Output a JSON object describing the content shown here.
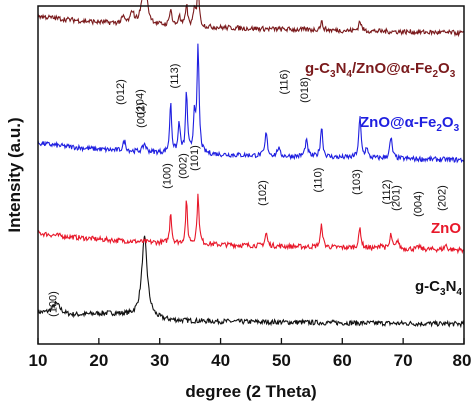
{
  "chart_data": {
    "type": "line",
    "xlabel": "degree (2 Theta)",
    "ylabel": "Intensity (a.u.)",
    "xlim": [
      10,
      80
    ],
    "xticks": [
      10,
      20,
      30,
      40,
      50,
      60,
      70,
      80
    ],
    "series": [
      {
        "key": "gcn",
        "label_html": "g-C<tspan class=\"sub\" dy=\"4\">3</tspan><tspan dy=\"-4\">N</tspan><tspan class=\"sub\" dy=\"4\">4</tspan>",
        "color": "#111111",
        "baseline": 0.0,
        "peaks": [
          [
            13.0,
            0.11,
            0.8
          ],
          [
            27.5,
            0.8,
            0.55
          ]
        ],
        "annotations": [
          {
            "x": 13.0,
            "y": 0.16,
            "text": "(100)"
          }
        ]
      },
      {
        "key": "zno",
        "label_html": "ZnO",
        "color": "#e8182a",
        "baseline": 0.78,
        "peaks": [
          [
            31.8,
            0.32,
            0.18
          ],
          [
            34.4,
            0.42,
            0.18
          ],
          [
            36.3,
            0.48,
            0.2
          ],
          [
            47.5,
            0.13,
            0.22
          ],
          [
            56.6,
            0.22,
            0.22
          ],
          [
            62.9,
            0.2,
            0.22
          ],
          [
            66.4,
            0.05,
            0.2
          ],
          [
            68.0,
            0.14,
            0.2
          ],
          [
            69.1,
            0.09,
            0.2
          ],
          [
            72.6,
            0.03,
            0.2
          ],
          [
            77.0,
            0.05,
            0.2
          ]
        ],
        "annotations": [
          {
            "x": 27.5,
            "y": 2.05,
            "text": "(002)"
          },
          {
            "x": 31.8,
            "y": 1.44,
            "text": "(100)"
          },
          {
            "x": 34.4,
            "y": 1.54,
            "text": "(002)"
          },
          {
            "x": 36.3,
            "y": 1.62,
            "text": "(101)"
          },
          {
            "x": 47.5,
            "y": 1.27,
            "text": "(102)"
          },
          {
            "x": 56.6,
            "y": 1.4,
            "text": "(110)"
          },
          {
            "x": 62.9,
            "y": 1.38,
            "text": "(103)"
          },
          {
            "x": 67.8,
            "y": 1.28,
            "text": "(112)"
          },
          {
            "x": 69.4,
            "y": 1.22,
            "text": "(201)"
          },
          {
            "x": 73.0,
            "y": 1.16,
            "text": "(004)"
          },
          {
            "x": 77.0,
            "y": 1.22,
            "text": "(202)"
          }
        ]
      },
      {
        "key": "znofe",
        "label_html": "ZnO@α-Fe<tspan class=\"sub\" dy=\"4\">2</tspan><tspan dy=\"-4\">O</tspan><tspan class=\"sub\" dy=\"4\">3</tspan>",
        "color": "#1f1fe0",
        "baseline": 1.68,
        "peaks": [
          [
            24.2,
            0.1,
            0.25
          ],
          [
            27.5,
            0.08,
            0.3
          ],
          [
            31.8,
            0.52,
            0.18
          ],
          [
            33.2,
            0.3,
            0.2
          ],
          [
            34.4,
            0.62,
            0.18
          ],
          [
            35.7,
            0.4,
            0.18
          ],
          [
            36.3,
            1.05,
            0.2
          ],
          [
            47.5,
            0.23,
            0.22
          ],
          [
            49.5,
            0.08,
            0.25
          ],
          [
            54.1,
            0.16,
            0.25
          ],
          [
            56.6,
            0.3,
            0.22
          ],
          [
            62.9,
            0.4,
            0.22
          ],
          [
            64.0,
            0.1,
            0.2
          ],
          [
            68.0,
            0.2,
            0.25
          ]
        ],
        "annotations": [
          {
            "x": 24.1,
            "y": 2.28,
            "text": "(012)"
          },
          {
            "x": 27.3,
            "y": 2.18,
            "text": "(104)"
          },
          {
            "x": 33.0,
            "y": 2.44,
            "text": "(113)"
          },
          {
            "x": 51.0,
            "y": 2.38,
            "text": "(116)"
          },
          {
            "x": 54.4,
            "y": 2.3,
            "text": "(018)"
          }
        ]
      },
      {
        "key": "ternary",
        "label_html": "g-C<tspan class=\"sub\" dy=\"4\">3</tspan><tspan dy=\"-4\">N</tspan><tspan class=\"sub\" dy=\"4\">4</tspan><tspan dy=\"-4\">/ZnO@α-Fe</tspan><tspan class=\"sub\" dy=\"4\">2</tspan><tspan dy=\"-4\">O</tspan><tspan class=\"sub\" dy=\"4\">3</tspan>",
        "color": "#7a1a1c",
        "baseline": 2.95,
        "peaks": [
          [
            24.0,
            0.06,
            0.3
          ],
          [
            25.5,
            0.12,
            0.3
          ],
          [
            27.5,
            0.5,
            0.45
          ],
          [
            31.8,
            0.18,
            0.2
          ],
          [
            33.2,
            0.1,
            0.2
          ],
          [
            34.4,
            0.22,
            0.2
          ],
          [
            35.7,
            0.16,
            0.2
          ],
          [
            36.3,
            0.42,
            0.2
          ],
          [
            56.6,
            0.08,
            0.25
          ],
          [
            62.9,
            0.1,
            0.25
          ]
        ],
        "annotations": []
      }
    ]
  }
}
